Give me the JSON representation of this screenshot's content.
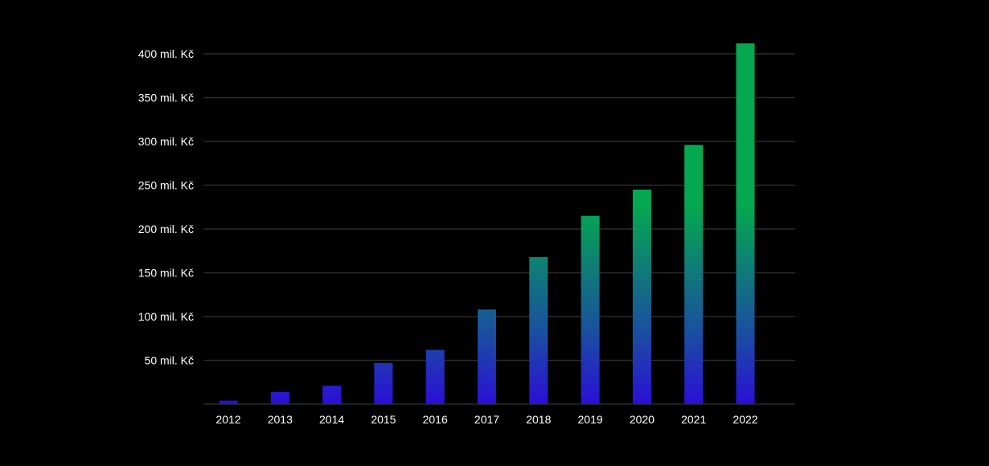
{
  "chart_data": {
    "type": "bar",
    "title": "",
    "xlabel": "",
    "ylabel": "",
    "categories": [
      "2012",
      "2013",
      "2014",
      "2015",
      "2016",
      "2017",
      "2018",
      "2019",
      "2020",
      "2021",
      "2022"
    ],
    "values": [
      4,
      14,
      21,
      47,
      62,
      108,
      168,
      215,
      245,
      296,
      412
    ],
    "ylim": [
      0,
      400
    ],
    "yticks": [
      50,
      100,
      150,
      200,
      250,
      300,
      350,
      400
    ],
    "ytick_labels": [
      "50 mil. Kč",
      "100 mil. Kč",
      "150 mil. Kč",
      "200 mil. Kč",
      "250 mil. Kč",
      "300 mil. Kč",
      "350 mil. Kč",
      "400 mil. Kč"
    ],
    "grid": true,
    "legend": "none",
    "colors": {
      "background": "#000000",
      "bar_top": "#05a84f",
      "bar_bottom": "#2a0fd6",
      "gridline": "#2b2b2b",
      "text": "#ffffff"
    }
  }
}
